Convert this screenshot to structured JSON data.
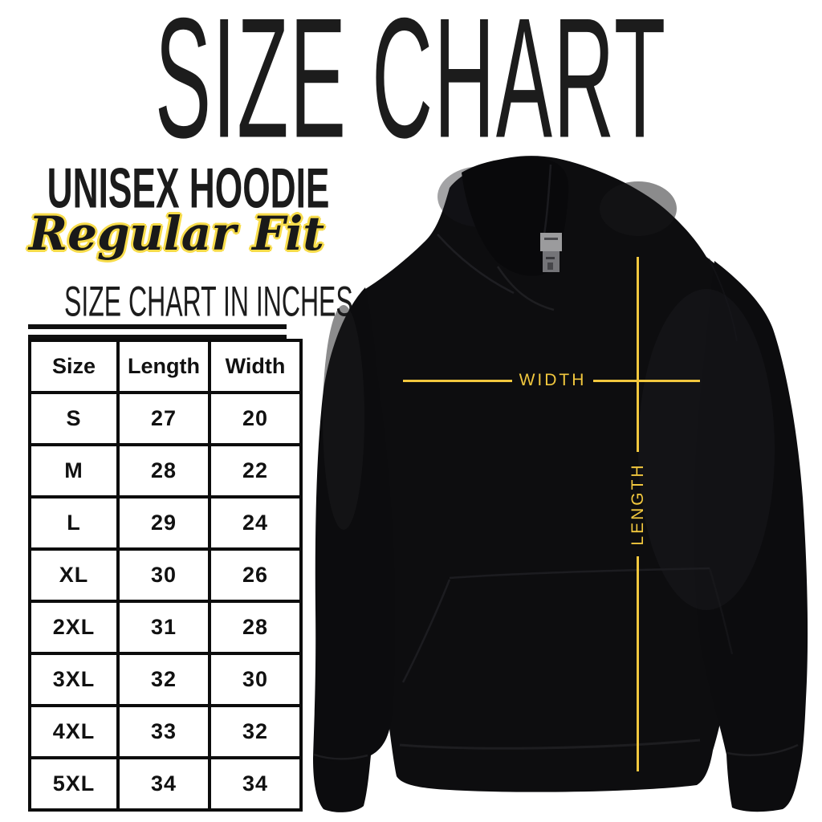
{
  "page": {
    "title": "SIZE CHART",
    "product": "UNISEX HOODIE",
    "fit": "Regular Fit",
    "table_heading": "SIZE CHART IN INCHES"
  },
  "chart_data": {
    "type": "table",
    "title": "Size Chart in Inches",
    "columns": [
      "Size",
      "Length",
      "Width"
    ],
    "rows": [
      [
        "S",
        27,
        20
      ],
      [
        "M",
        28,
        22
      ],
      [
        "L",
        29,
        24
      ],
      [
        "XL",
        30,
        26
      ],
      [
        "2XL",
        31,
        28
      ],
      [
        "3XL",
        32,
        30
      ],
      [
        "4XL",
        33,
        32
      ],
      [
        "5XL",
        34,
        34
      ]
    ]
  },
  "diagram": {
    "width_label": "WIDTH",
    "length_label": "LENGTH"
  },
  "colors": {
    "accent_yellow": "#F1C73E",
    "script_outline_yellow": "#F7DC4B",
    "ink_black": "#141414",
    "hoodie_black": "#0D0D0F",
    "background": "#FFFFFF"
  }
}
